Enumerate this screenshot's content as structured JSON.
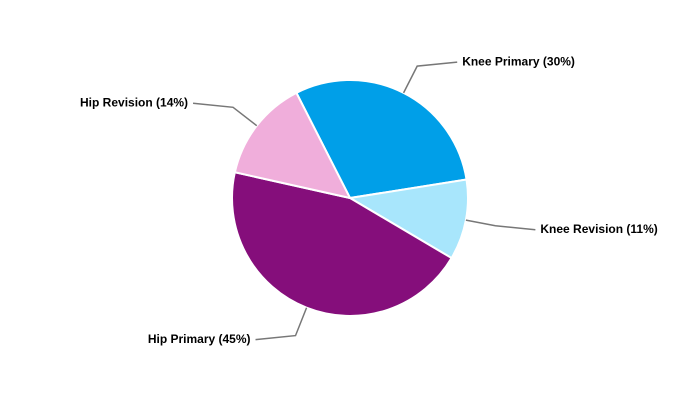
{
  "chart_data": {
    "type": "pie",
    "labels": [
      "Knee Primary (30%)",
      "Knee Revision (11%)",
      "Hip Primary (45%)",
      "Hip Revision (14%)"
    ],
    "values": [
      30,
      11,
      45,
      14
    ],
    "colors": [
      "#009fe8",
      "#a8e6fc",
      "#850e7b",
      "#f0aedb"
    ]
  }
}
